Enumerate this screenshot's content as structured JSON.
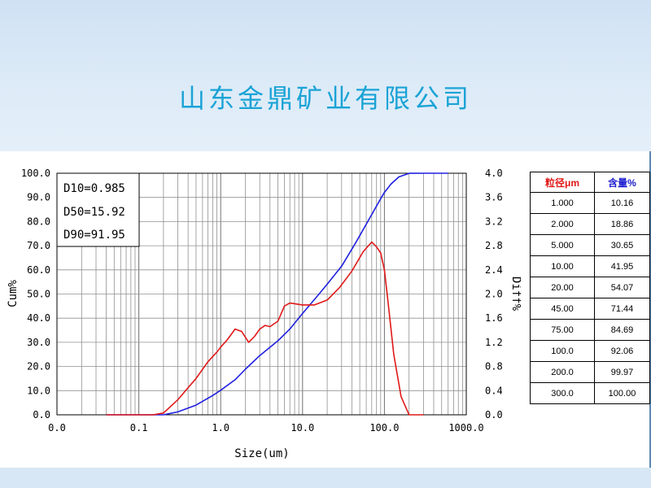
{
  "header": {
    "company_name": "山东金鼎矿业有限公司"
  },
  "colors": {
    "cumulative_line": "#2020e0",
    "differential_line": "#e01818",
    "title": "#1aa3d6",
    "size_header": "#e01818",
    "content_header": "#1a1ad0"
  },
  "chart_data": {
    "type": "line",
    "xlabel": "Size(um)",
    "ylabel_left": "Cum%",
    "ylabel_right": "Diff%",
    "x_scale": "log",
    "xlim": [
      0.01,
      1000.0
    ],
    "ylim_left": [
      0,
      100
    ],
    "ylim_right": [
      0,
      4.0
    ],
    "x_tick_labels": [
      "0.0",
      "0.1",
      "1.0",
      "10.0",
      "100.0",
      "1000.0"
    ],
    "y_left_tick_labels": [
      "0.0",
      "10.0",
      "20.0",
      "30.0",
      "40.0",
      "50.0",
      "60.0",
      "70.0",
      "80.0",
      "90.0",
      "100.0"
    ],
    "y_right_tick_labels": [
      "0.0",
      "0.4",
      "0.8",
      "1.2",
      "1.6",
      "2.0",
      "2.4",
      "2.8",
      "3.2",
      "3.6",
      "4.0"
    ],
    "grid": true,
    "annotations": [
      "D10=0.985",
      "D50=15.92",
      "D90=91.95"
    ],
    "series": [
      {
        "axis": "left",
        "x": [
          0.04,
          0.1,
          0.2,
          0.3,
          0.5,
          0.8,
          1.0,
          1.5,
          2.0,
          3.0,
          5.0,
          7.0,
          10.0,
          15.92,
          20.0,
          30.0,
          45.0,
          75.0,
          91.95,
          100.0,
          120.0,
          150.0,
          200.0,
          300.0,
          600.0
        ],
        "y": [
          0,
          0,
          0,
          1.2,
          4,
          8,
          10.16,
          14.5,
          18.86,
          24.5,
          30.65,
          35.5,
          41.95,
          50,
          54.07,
          61.5,
          71.44,
          84.69,
          90,
          92.06,
          95.5,
          98.5,
          99.97,
          100,
          100
        ]
      },
      {
        "axis": "right",
        "x": [
          0.04,
          0.1,
          0.15,
          0.2,
          0.3,
          0.4,
          0.5,
          0.7,
          0.9,
          1.0,
          1.2,
          1.5,
          1.8,
          2.2,
          2.6,
          3.0,
          3.5,
          4.0,
          5.0,
          6.0,
          7.0,
          8.0,
          10.0,
          14.0,
          20.0,
          28.0,
          40.0,
          55.0,
          70.0,
          80.0,
          90.0,
          100.0,
          110.0,
          130.0,
          160.0,
          200.0,
          300.0
        ],
        "y": [
          0,
          0,
          0,
          0.03,
          0.25,
          0.45,
          0.6,
          0.88,
          1.04,
          1.12,
          1.24,
          1.42,
          1.38,
          1.2,
          1.3,
          1.42,
          1.48,
          1.46,
          1.55,
          1.8,
          1.85,
          1.84,
          1.82,
          1.82,
          1.9,
          2.1,
          2.38,
          2.7,
          2.86,
          2.78,
          2.68,
          2.4,
          1.9,
          1.0,
          0.3,
          0,
          0
        ]
      }
    ]
  },
  "table": {
    "headers": [
      "粒径μm",
      "含量%"
    ],
    "rows": [
      [
        "1.000",
        "10.16"
      ],
      [
        "2.000",
        "18.86"
      ],
      [
        "5.000",
        "30.65"
      ],
      [
        "10.00",
        "41.95"
      ],
      [
        "20.00",
        "54.07"
      ],
      [
        "45.00",
        "71.44"
      ],
      [
        "75.00",
        "84.69"
      ],
      [
        "100.0",
        "92.06"
      ],
      [
        "200.0",
        "99.97"
      ],
      [
        "300.0",
        "100.00"
      ]
    ]
  }
}
